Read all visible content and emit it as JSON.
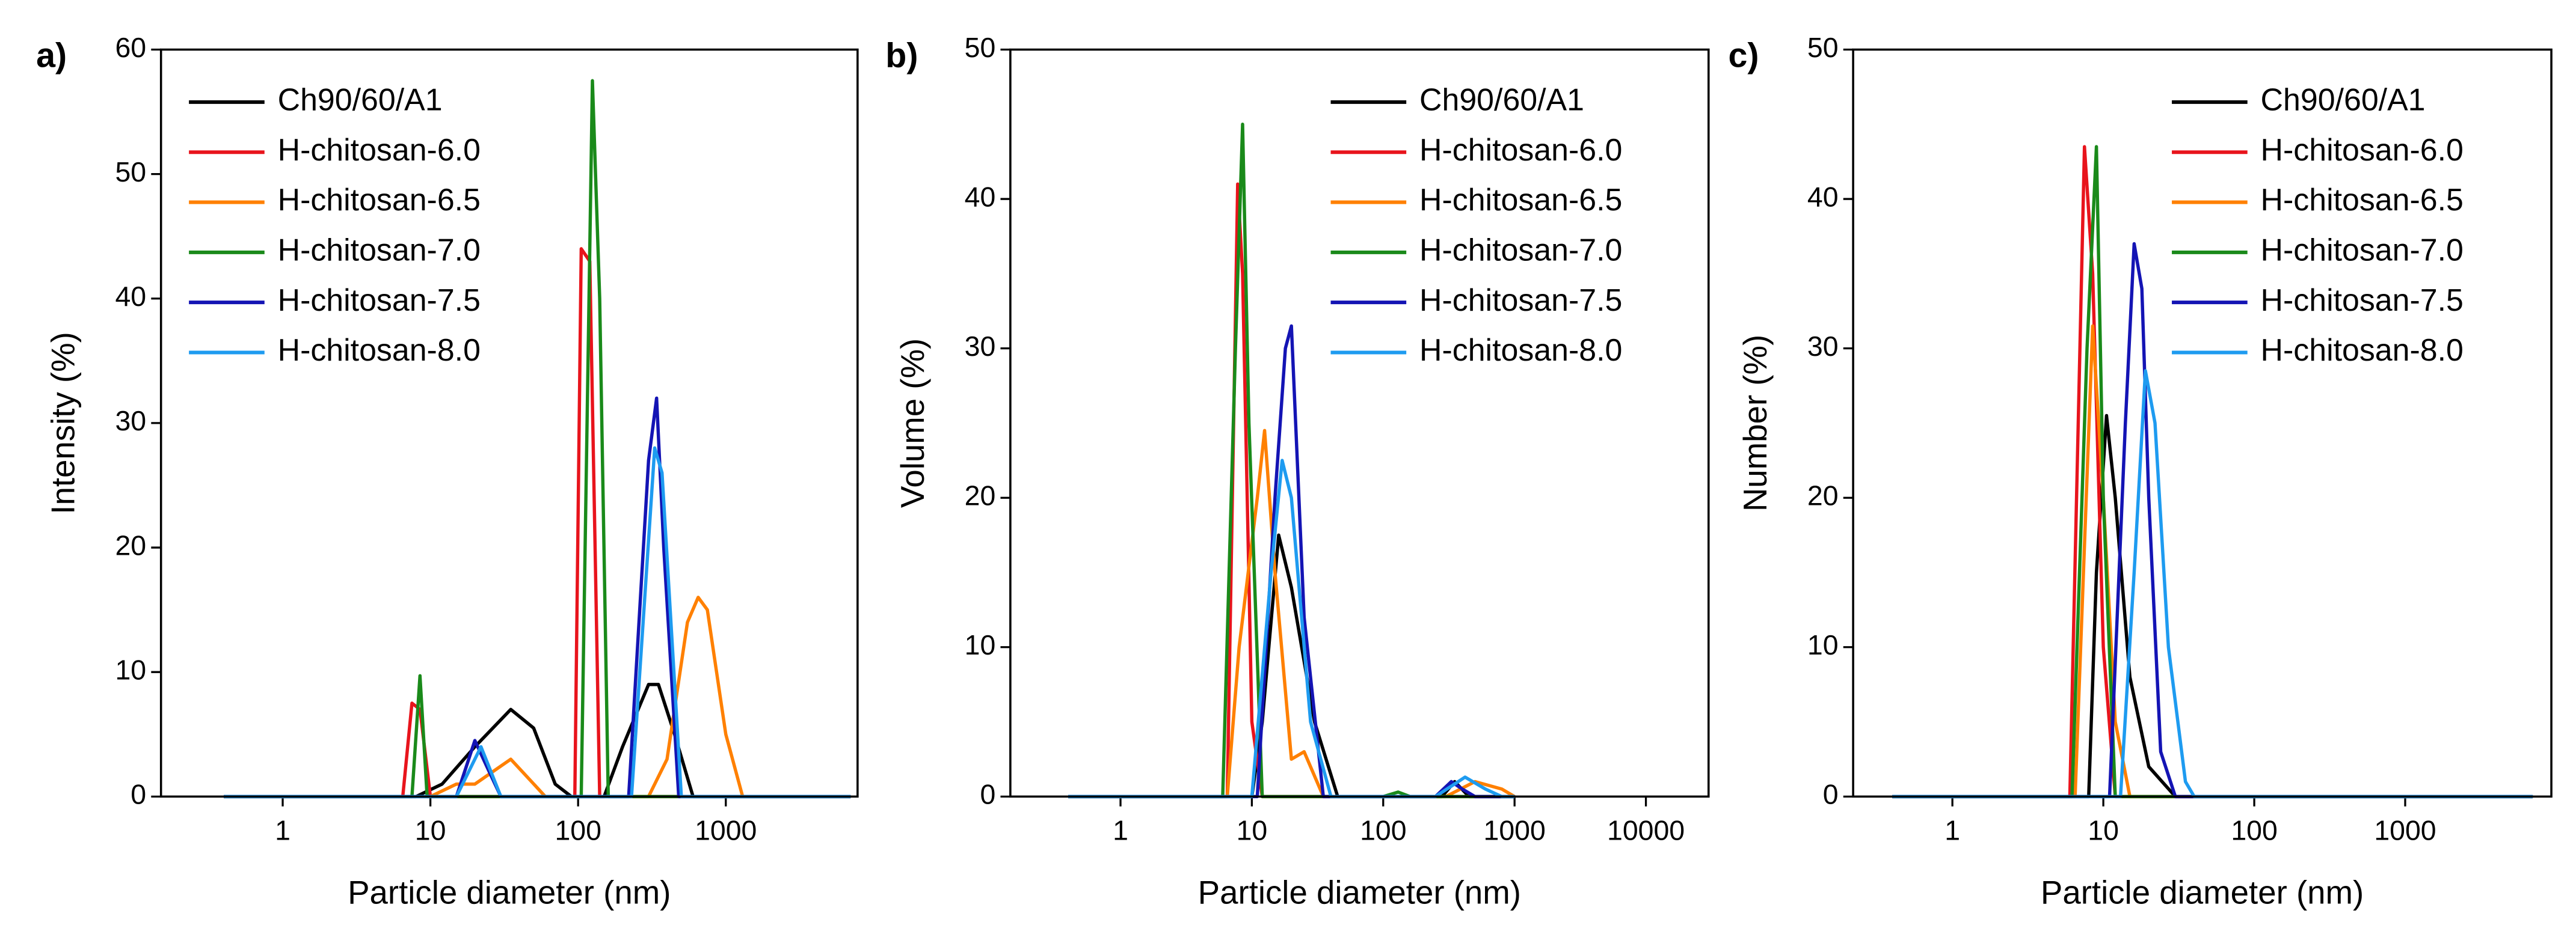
{
  "chart_data": [
    {
      "type": "line",
      "panel_label": "a)",
      "xlabel": "Particle diameter (nm)",
      "ylabel": "Intensity (%)",
      "log_x": true,
      "xlim": [
        0.15,
        7800
      ],
      "xticks": [
        1,
        10,
        100,
        1000
      ],
      "ylim": [
        0,
        60
      ],
      "yticks": [
        0,
        10,
        20,
        30,
        40,
        50,
        60
      ],
      "series": [
        {
          "name": "Ch90/60/A1",
          "color": "#000000",
          "x": [
            0.4,
            8,
            12,
            20,
            35,
            50,
            70,
            90,
            150,
            200,
            300,
            350,
            450,
            600,
            7000
          ],
          "values": [
            0,
            0,
            1,
            4,
            7,
            5.5,
            1,
            0,
            0,
            4,
            9,
            9,
            5,
            0,
            0
          ]
        },
        {
          "name": "H-chitosan-6.0",
          "color": "#e8141c",
          "x": [
            0.4,
            6.5,
            7.5,
            8.5,
            10,
            95,
            105,
            120,
            140,
            7000
          ],
          "values": [
            0,
            0,
            7.5,
            7,
            0,
            0,
            44,
            43,
            0,
            0
          ]
        },
        {
          "name": "H-chitosan-6.5",
          "color": "#ff8000",
          "x": [
            0.4,
            10,
            15,
            20,
            35,
            60,
            300,
            400,
            550,
            650,
            750,
            1000,
            1300,
            7000
          ],
          "values": [
            0,
            0,
            1,
            1,
            3,
            0,
            0,
            3,
            14,
            16,
            15,
            5,
            0,
            0
          ]
        },
        {
          "name": "H-chitosan-7.0",
          "color": "#1a8a1a",
          "x": [
            0.4,
            7.5,
            8.5,
            9.5,
            105,
            125,
            140,
            160,
            7000
          ],
          "values": [
            0,
            0,
            9.7,
            0,
            0,
            57.5,
            40,
            0,
            0
          ]
        },
        {
          "name": "H-chitosan-7.5",
          "color": "#1414b4",
          "x": [
            0.4,
            15,
            20,
            25,
            30,
            220,
            300,
            340,
            380,
            480,
            7000
          ],
          "values": [
            0,
            0,
            4.5,
            2,
            0,
            0,
            27,
            32,
            20,
            0,
            0
          ]
        },
        {
          "name": "H-chitosan-8.0",
          "color": "#1e9bf0",
          "x": [
            0.4,
            15,
            22,
            30,
            230,
            330,
            370,
            500,
            7000
          ],
          "values": [
            0,
            0,
            4,
            0,
            0,
            28,
            26,
            0,
            0
          ]
        }
      ]
    },
    {
      "type": "line",
      "panel_label": "b)",
      "xlabel": "Particle diameter (nm)",
      "ylabel": "Volume (%)",
      "log_x": true,
      "xlim": [
        0.145,
        30000
      ],
      "xticks": [
        1,
        10,
        100,
        1000,
        10000
      ],
      "ylim": [
        0,
        50
      ],
      "yticks": [
        0,
        10,
        20,
        30,
        40,
        50
      ],
      "series": [
        {
          "name": "Ch90/60/A1",
          "color": "#000000",
          "x": [
            0.4,
            10,
            12,
            16,
            20,
            30,
            45,
            280,
            350,
            450,
            1000
          ],
          "values": [
            0,
            0,
            5,
            17.5,
            14,
            5,
            0,
            0,
            1,
            0,
            0
          ]
        },
        {
          "name": "H-chitosan-6.0",
          "color": "#e8141c",
          "x": [
            0.4,
            6.5,
            7.8,
            8.5,
            10,
            12,
            1000
          ],
          "values": [
            0,
            0,
            41,
            35,
            5,
            0,
            0
          ]
        },
        {
          "name": "H-chitosan-6.5",
          "color": "#ff8000",
          "x": [
            0.4,
            6.5,
            8,
            11,
            12.5,
            15,
            20,
            25,
            35,
            300,
            500,
            800,
            1000
          ],
          "values": [
            0,
            0,
            10,
            20,
            24.5,
            15,
            2.5,
            3,
            0,
            0,
            1,
            0.5,
            0
          ]
        },
        {
          "name": "H-chitosan-7.0",
          "color": "#1a8a1a",
          "x": [
            0.4,
            6,
            7.5,
            8.5,
            9.5,
            12,
            100,
            130,
            160,
            1000
          ],
          "values": [
            0,
            0,
            30,
            45,
            25,
            0,
            0,
            0.3,
            0,
            0
          ]
        },
        {
          "name": "H-chitosan-7.5",
          "color": "#1414b4",
          "x": [
            0.4,
            11,
            15,
            18,
            20,
            25,
            35,
            250,
            330,
            400,
            500,
            1000
          ],
          "values": [
            0,
            0,
            20,
            30,
            31.5,
            12,
            0,
            0,
            1,
            0.5,
            0,
            0
          ]
        },
        {
          "name": "H-chitosan-8.0",
          "color": "#1e9bf0",
          "x": [
            0.4,
            10,
            14,
            17,
            20,
            28,
            40,
            250,
            420,
            600,
            800,
            1000
          ],
          "values": [
            0,
            0,
            15,
            22.5,
            20,
            5,
            0,
            0,
            1.3,
            0.5,
            0,
            0
          ]
        }
      ]
    },
    {
      "type": "line",
      "panel_label": "c)",
      "xlabel": "Particle diameter (nm)",
      "ylabel": "Number (%)",
      "log_x": true,
      "xlim": [
        0.22,
        9300
      ],
      "xticks": [
        1,
        10,
        100,
        1000
      ],
      "ylim": [
        0,
        50
      ],
      "yticks": [
        0,
        10,
        20,
        30,
        40,
        50
      ],
      "series": [
        {
          "name": "Ch90/60/A1",
          "color": "#000000",
          "x": [
            0.4,
            8,
            9,
            10.5,
            12,
            15,
            20,
            30,
            7000
          ],
          "values": [
            0,
            0,
            15,
            25.5,
            20,
            8,
            2,
            0,
            0
          ]
        },
        {
          "name": "H-chitosan-6.0",
          "color": "#e8141c",
          "x": [
            0.4,
            6,
            7.5,
            8.5,
            10,
            12,
            7000
          ],
          "values": [
            0,
            0,
            43.5,
            35,
            10,
            0,
            0
          ]
        },
        {
          "name": "H-chitosan-6.5",
          "color": "#ff8000",
          "x": [
            0.4,
            6.5,
            8.5,
            10,
            12,
            15,
            7000
          ],
          "values": [
            0,
            0,
            31.5,
            20,
            5,
            0,
            0
          ]
        },
        {
          "name": "H-chitosan-7.0",
          "color": "#1a8a1a",
          "x": [
            0.4,
            6.2,
            7.8,
            9,
            10,
            12,
            7000
          ],
          "values": [
            0,
            0,
            30,
            43.5,
            20,
            0,
            0
          ]
        },
        {
          "name": "H-chitosan-7.5",
          "color": "#1414b4",
          "x": [
            0.4,
            11,
            14,
            16,
            18,
            20,
            24,
            30,
            7000
          ],
          "values": [
            0,
            0,
            25,
            37,
            34,
            20,
            3,
            0,
            0
          ]
        },
        {
          "name": "H-chitosan-8.0",
          "color": "#1e9bf0",
          "x": [
            0.4,
            13,
            16,
            19,
            22,
            27,
            35,
            40,
            7000
          ],
          "values": [
            0,
            0,
            15,
            28.5,
            25,
            10,
            1,
            0,
            0
          ]
        }
      ]
    }
  ]
}
